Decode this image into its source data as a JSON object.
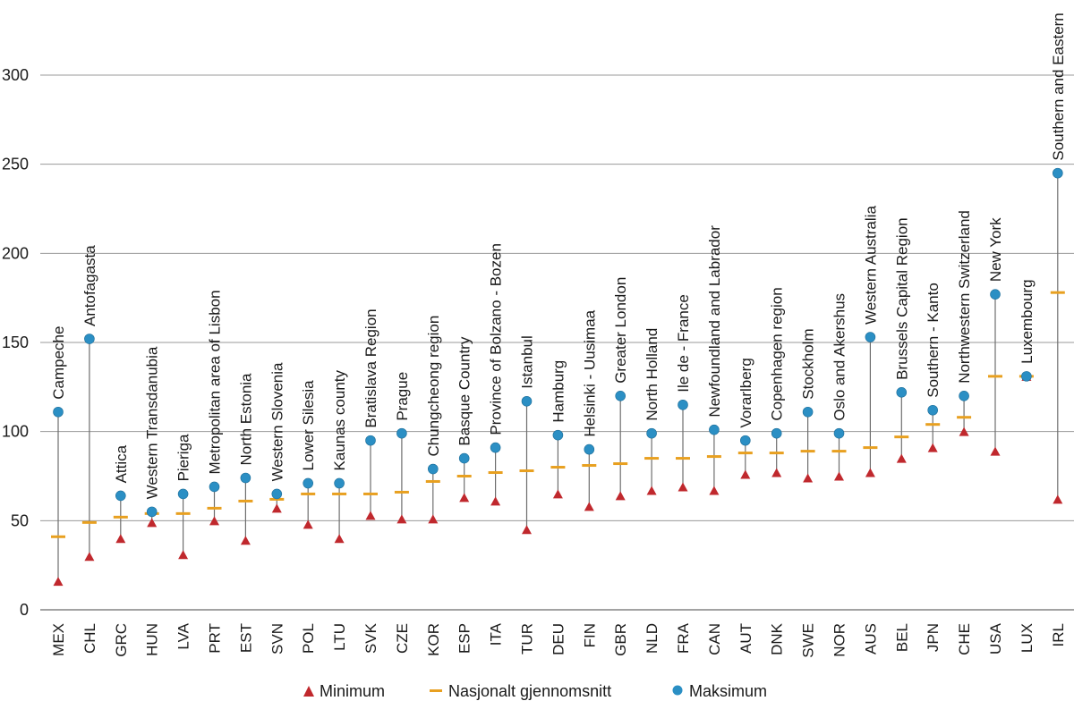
{
  "chart_data": {
    "type": "scatter",
    "ylim": [
      0,
      300
    ],
    "yticks": [
      0,
      50,
      100,
      150,
      200,
      250,
      300
    ],
    "grid": true,
    "legend_position": "bottom",
    "categories": [
      "MEX",
      "CHL",
      "GRC",
      "HUN",
      "LVA",
      "PRT",
      "EST",
      "SVN",
      "POL",
      "LTU",
      "SVK",
      "CZE",
      "KOR",
      "ESP",
      "ITA",
      "TUR",
      "DEU",
      "FIN",
      "GBR",
      "NLD",
      "FRA",
      "CAN",
      "AUT",
      "DNK",
      "SWE",
      "NOR",
      "AUS",
      "BEL",
      "JPN",
      "CHE",
      "USA",
      "LUX",
      "IRL"
    ],
    "region_labels": [
      "Campeche",
      "Antofagasta",
      "Attica",
      "Western Transdanubia",
      "Pieriga",
      "Metropolitan area of Lisbon",
      "North Estonia",
      "Western Slovenia",
      "Lower Silesia",
      "Kaunas county",
      "Bratislava Region",
      "Prague",
      "Chungcheong region",
      "Basque Country",
      "Province of Bolzano - Bozen",
      "Istanbul",
      "Hamburg",
      "Helsinki - Uusimaa",
      "Greater London",
      "North Holland",
      "Ile de - France",
      "Newfoundland and Labrador",
      "Vorarlberg",
      "Copenhagen region",
      "Stockholm",
      "Oslo and Akershus",
      "Western Australia",
      "Brussels Capital Region",
      "Southern - Kanto",
      "Northwestern Switzerland",
      "New York",
      "Luxembourg",
      "Southern and Eastern"
    ],
    "series": [
      {
        "name": "Minimum",
        "marker": "triangle",
        "color": "#c0282d",
        "values": [
          16,
          30,
          40,
          49,
          31,
          50,
          39,
          57,
          48,
          40,
          53,
          51,
          51,
          63,
          61,
          45,
          65,
          58,
          64,
          67,
          69,
          67,
          76,
          77,
          74,
          75,
          77,
          85,
          91,
          100,
          89,
          131,
          62
        ]
      },
      {
        "name": "Nasjonalt gjennomsnitt",
        "marker": "dash",
        "color": "#e8a020",
        "values": [
          41,
          49,
          52,
          54,
          54,
          57,
          61,
          62,
          65,
          65,
          65,
          66,
          72,
          75,
          77,
          78,
          80,
          81,
          82,
          85,
          85,
          86,
          88,
          88,
          89,
          89,
          91,
          97,
          104,
          108,
          131,
          131,
          178
        ]
      },
      {
        "name": "Maksimum",
        "marker": "circle",
        "color": "#2b8fc4",
        "values": [
          111,
          152,
          64,
          55,
          65,
          69,
          74,
          65,
          71,
          71,
          95,
          99,
          79,
          85,
          91,
          117,
          98,
          90,
          120,
          99,
          115,
          101,
          95,
          99,
          111,
          99,
          153,
          122,
          112,
          120,
          177,
          131,
          245
        ]
      }
    ]
  }
}
